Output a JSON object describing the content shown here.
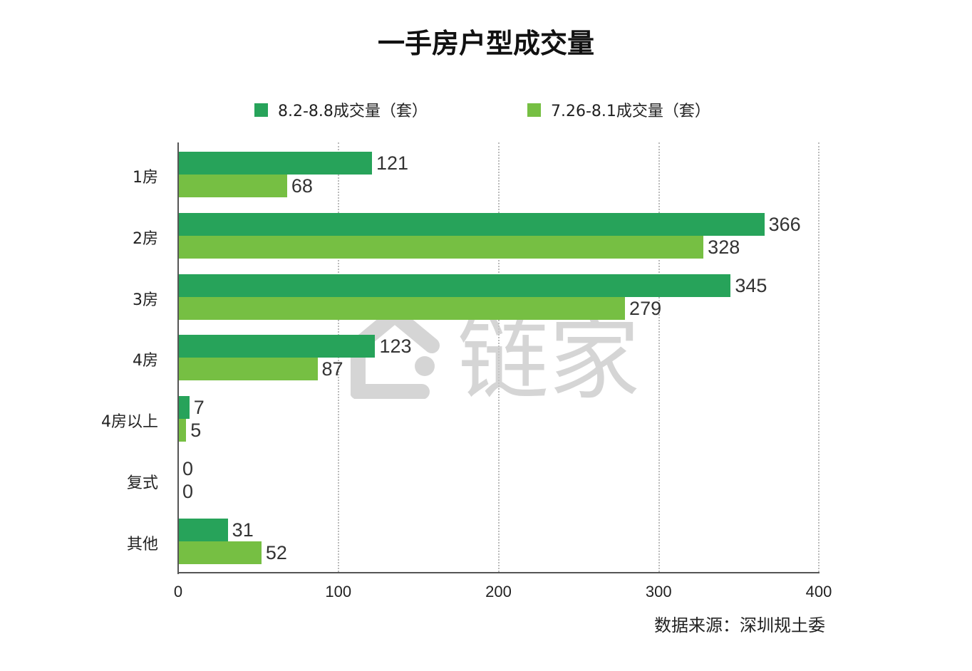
{
  "chart_data": {
    "type": "bar",
    "orientation": "horizontal",
    "title": "一手房户型成交量",
    "categories": [
      "1房",
      "2房",
      "3房",
      "4房",
      "4房以上",
      "复式",
      "其他"
    ],
    "series": [
      {
        "name": "8.2-8.8成交量（套）",
        "color": "#27a35a",
        "values": [
          121,
          366,
          345,
          123,
          7,
          0,
          31
        ]
      },
      {
        "name": "7.26-8.1成交量（套）",
        "color": "#76bf43",
        "values": [
          68,
          328,
          279,
          87,
          5,
          0,
          52
        ]
      }
    ],
    "xlabel": "",
    "ylabel": "",
    "xlim": [
      0,
      400
    ],
    "xticks": [
      "0",
      "100",
      "200",
      "300",
      "400"
    ],
    "grid": "vertical dotted",
    "legend_position": "top",
    "annotation": "数据来源：深圳规土委",
    "watermark": "链家"
  },
  "title": "一手房户型成交量",
  "legend": [
    {
      "label": "8.2-8.8成交量（套）",
      "color": "#27a35a"
    },
    {
      "label": "7.26-8.1成交量（套）",
      "color": "#76bf43"
    }
  ],
  "source": "数据来源：深圳规土委",
  "watermark_text": "链家"
}
